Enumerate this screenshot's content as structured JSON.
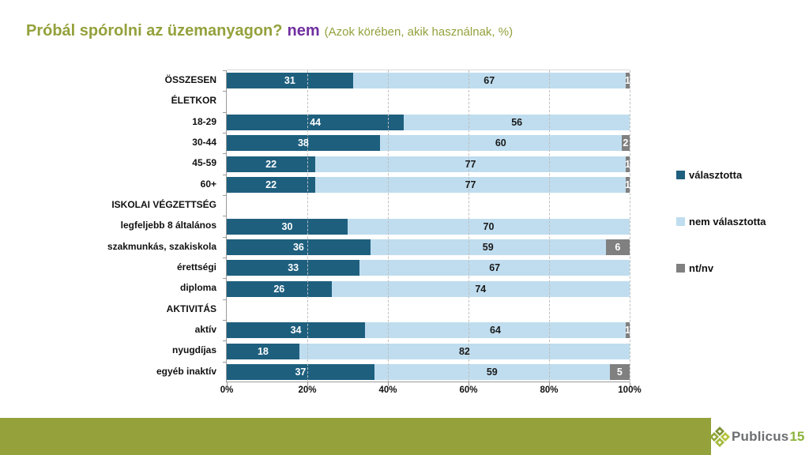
{
  "title": {
    "main": "Próbál spórolni az üzemanyagon?",
    "answer": "nem",
    "note": "(Azok körében, akik használnak, %)"
  },
  "colors": {
    "title_green": "#94A13C",
    "answer_purple": "#7030A0",
    "bar_dark_blue": "#1E5F7E",
    "bar_light_blue": "#BFDDEF",
    "bar_gray": "#808080",
    "footer_band_green": "#95A23B",
    "logo_text_gray": "#6D6E71",
    "logo_number_green": "#8CB43B"
  },
  "chart_data": {
    "type": "bar",
    "orientation": "horizontal-stacked",
    "title": "Próbál spórolni az üzemanyagon? nem",
    "subtitle": "(Azok körében, akik használnak, %)",
    "xlabel": "",
    "ylabel": "",
    "xlim": [
      0,
      100
    ],
    "grid": "dashed-vertical",
    "legend_position": "right",
    "x_ticks": [
      "0%",
      "20%",
      "40%",
      "60%",
      "80%",
      "100%"
    ],
    "series_names": [
      "választotta",
      "nem választotta",
      "nt/nv"
    ],
    "legend": [
      {
        "label": "választotta",
        "color": "#1E5F7E"
      },
      {
        "label": "nem választotta",
        "color": "#BFDDEF"
      },
      {
        "label": "nt/nv",
        "color": "#808080"
      }
    ],
    "rows": [
      {
        "label": "ÖSSZESEN",
        "kind": "data",
        "values": [
          31,
          67,
          1
        ]
      },
      {
        "label": "ÉLETKOR",
        "kind": "header",
        "values": [
          0,
          0,
          0
        ]
      },
      {
        "label": "18-29",
        "kind": "data",
        "values": [
          44,
          56,
          0
        ]
      },
      {
        "label": "30-44",
        "kind": "data",
        "values": [
          38,
          60,
          2
        ]
      },
      {
        "label": "45-59",
        "kind": "data",
        "values": [
          22,
          77,
          1
        ]
      },
      {
        "label": "60+",
        "kind": "data",
        "values": [
          22,
          77,
          1
        ]
      },
      {
        "label": "ISKOLAI VÉGZETTSÉG",
        "kind": "header",
        "values": [
          0,
          0,
          0
        ]
      },
      {
        "label": "legfeljebb 8 általános",
        "kind": "data",
        "values": [
          30,
          70,
          0
        ]
      },
      {
        "label": "szakmunkás, szakiskola",
        "kind": "data",
        "values": [
          36,
          59,
          6
        ]
      },
      {
        "label": "érettségi",
        "kind": "data",
        "values": [
          33,
          67,
          0
        ]
      },
      {
        "label": "diploma",
        "kind": "data",
        "values": [
          26,
          74,
          0
        ]
      },
      {
        "label": "AKTIVITÁS",
        "kind": "header",
        "values": [
          0,
          0,
          0
        ]
      },
      {
        "label": "aktív",
        "kind": "data",
        "values": [
          34,
          64,
          1
        ]
      },
      {
        "label": "nyugdíjas",
        "kind": "data",
        "values": [
          18,
          82,
          0
        ]
      },
      {
        "label": "egyéb inaktív",
        "kind": "data",
        "values": [
          37,
          59,
          5
        ]
      }
    ]
  },
  "footer": {
    "brand": "Publicus",
    "brand_number": "15"
  }
}
